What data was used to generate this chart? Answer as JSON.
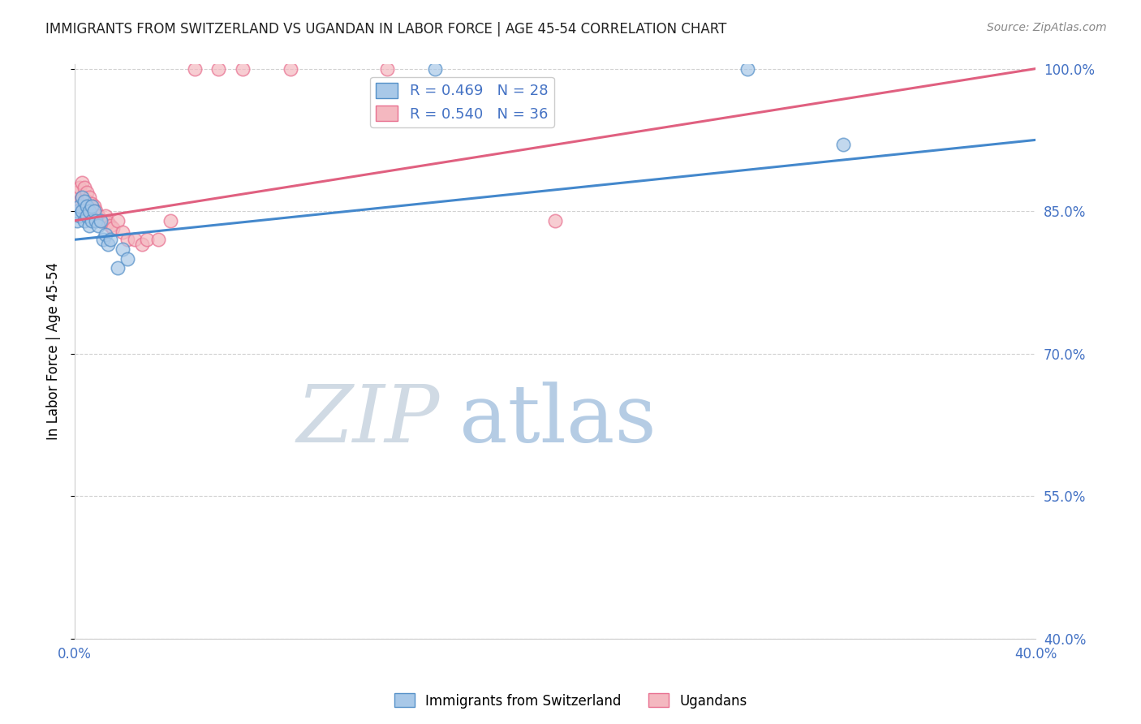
{
  "title": "IMMIGRANTS FROM SWITZERLAND VS UGANDAN IN LABOR FORCE | AGE 45-54 CORRELATION CHART",
  "source": "Source: ZipAtlas.com",
  "ylabel": "In Labor Force | Age 45-54",
  "xlim": [
    0.0,
    0.4
  ],
  "ylim": [
    0.4,
    1.005
  ],
  "xticks": [
    0.0,
    0.05,
    0.1,
    0.15,
    0.2,
    0.25,
    0.3,
    0.35,
    0.4
  ],
  "xticklabels": [
    "0.0%",
    "",
    "",
    "",
    "",
    "",
    "",
    "",
    "40.0%"
  ],
  "yticks": [
    0.4,
    0.55,
    0.7,
    0.85,
    1.0
  ],
  "yticklabels": [
    "40.0%",
    "55.0%",
    "70.0%",
    "85.0%",
    "100.0%"
  ],
  "legend_blue_r": "R = 0.469",
  "legend_blue_n": "N = 28",
  "legend_pink_r": "R = 0.540",
  "legend_pink_n": "N = 36",
  "blue_fill": "#a8c8e8",
  "pink_fill": "#f4b8c0",
  "blue_edge": "#5590c8",
  "pink_edge": "#e87090",
  "blue_line": "#4488cc",
  "pink_line": "#e06080",
  "axis_color": "#4472C4",
  "grid_color": "#cccccc",
  "title_color": "#222222",
  "source_color": "#888888",
  "zip_color": "#c8d8e8",
  "atlas_color": "#a8c4e0",
  "blue_scatter_x": [
    0.001,
    0.001,
    0.002,
    0.002,
    0.003,
    0.003,
    0.004,
    0.004,
    0.005,
    0.005,
    0.006,
    0.006,
    0.007,
    0.007,
    0.008,
    0.009,
    0.01,
    0.011,
    0.012,
    0.013,
    0.014,
    0.015,
    0.018,
    0.02,
    0.022,
    0.15,
    0.28,
    0.32
  ],
  "blue_scatter_y": [
    0.84,
    0.85,
    0.845,
    0.855,
    0.865,
    0.85,
    0.86,
    0.84,
    0.855,
    0.845,
    0.85,
    0.835,
    0.855,
    0.84,
    0.85,
    0.84,
    0.835,
    0.84,
    0.82,
    0.825,
    0.815,
    0.82,
    0.79,
    0.81,
    0.8,
    1.0,
    1.0,
    0.92
  ],
  "pink_scatter_x": [
    0.001,
    0.001,
    0.002,
    0.002,
    0.003,
    0.003,
    0.004,
    0.005,
    0.005,
    0.006,
    0.006,
    0.007,
    0.007,
    0.008,
    0.009,
    0.01,
    0.011,
    0.012,
    0.013,
    0.014,
    0.015,
    0.016,
    0.018,
    0.02,
    0.022,
    0.025,
    0.028,
    0.03,
    0.035,
    0.04,
    0.05,
    0.06,
    0.07,
    0.09,
    0.13,
    0.2
  ],
  "pink_scatter_y": [
    0.87,
    0.855,
    0.875,
    0.86,
    0.88,
    0.865,
    0.875,
    0.87,
    0.86,
    0.865,
    0.85,
    0.858,
    0.845,
    0.855,
    0.85,
    0.845,
    0.84,
    0.84,
    0.845,
    0.838,
    0.835,
    0.832,
    0.84,
    0.828,
    0.82,
    0.82,
    0.815,
    0.82,
    0.82,
    0.84,
    1.0,
    1.0,
    1.0,
    1.0,
    1.0,
    0.84
  ],
  "blue_trend_x": [
    0.0,
    0.4
  ],
  "blue_trend_y": [
    0.82,
    0.925
  ],
  "pink_trend_x": [
    0.0,
    0.4
  ],
  "pink_trend_y": [
    0.84,
    1.0
  ],
  "figsize": [
    14.06,
    8.92
  ],
  "dpi": 100
}
